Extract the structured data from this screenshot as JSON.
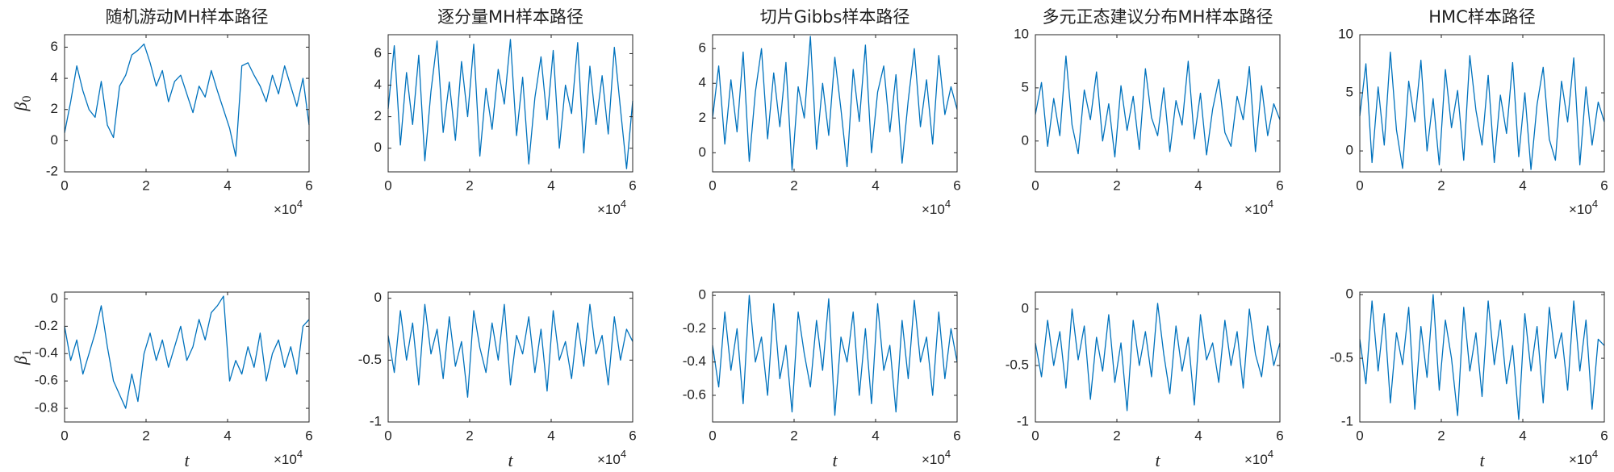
{
  "chart_data": [
    {
      "type": "line",
      "title": "随机游动MH样本路径",
      "ylabel": "β",
      "ylabel_subscript": "0",
      "x_multiplier": {
        "base": "×10",
        "exponent": "4"
      },
      "x": [
        0,
        1500,
        3000,
        4500,
        6000,
        7500,
        9000,
        10500,
        12000,
        13500,
        15000,
        16500,
        18000,
        19500,
        21000,
        22500,
        24000,
        25500,
        27000,
        28500,
        30000,
        31500,
        33000,
        34500,
        36000,
        37500,
        39000,
        40500,
        42000,
        43500,
        45000,
        46500,
        48000,
        49500,
        51000,
        52500,
        54000,
        55500,
        57000,
        58500,
        60000
      ],
      "values": [
        0.5,
        2.5,
        4.8,
        3.2,
        2.0,
        1.5,
        3.8,
        1.0,
        0.2,
        3.5,
        4.2,
        5.5,
        5.8,
        6.2,
        5.0,
        3.5,
        4.5,
        2.5,
        3.8,
        4.2,
        3.0,
        1.8,
        3.5,
        2.8,
        4.5,
        3.2,
        2.0,
        0.8,
        -1.0,
        4.8,
        5.0,
        4.2,
        3.5,
        2.5,
        4.2,
        3.0,
        4.8,
        3.5,
        2.2,
        4.0,
        1.0
      ],
      "color": "#0072bd",
      "xlim": [
        0,
        60000
      ],
      "xticks": [
        0,
        {
          "value": 20000,
          "label": "2"
        },
        {
          "value": 40000,
          "label": "4"
        },
        {
          "value": 60000,
          "label": "6"
        }
      ],
      "ylim": [
        -2,
        6.8
      ],
      "yticks": [
        -2,
        0,
        2,
        4,
        6
      ]
    },
    {
      "type": "line",
      "title": "逐分量MH样本路径",
      "x_multiplier": {
        "base": "×10",
        "exponent": "4"
      },
      "x": [
        0,
        1500,
        3000,
        4500,
        6000,
        7500,
        9000,
        10500,
        12000,
        13500,
        15000,
        16500,
        18000,
        19500,
        21000,
        22500,
        24000,
        25500,
        27000,
        28500,
        30000,
        31500,
        33000,
        34500,
        36000,
        37500,
        39000,
        40500,
        42000,
        43500,
        45000,
        46500,
        48000,
        49500,
        51000,
        52500,
        54000,
        55500,
        57000,
        58500,
        60000
      ],
      "values": [
        2.5,
        6.5,
        0.2,
        4.8,
        1.5,
        5.9,
        -0.8,
        3.6,
        6.8,
        1.0,
        4.2,
        0.5,
        5.5,
        2.0,
        6.6,
        -0.5,
        3.8,
        1.2,
        5.0,
        2.8,
        6.9,
        0.8,
        4.5,
        -1.0,
        3.2,
        5.8,
        1.8,
        6.2,
        0.0,
        4.0,
        2.2,
        6.7,
        -0.3,
        5.2,
        1.5,
        4.6,
        0.9,
        6.4,
        2.5,
        -1.3,
        3.0
      ],
      "color": "#0072bd",
      "xlim": [
        0,
        60000
      ],
      "xticks": [
        0,
        {
          "value": 20000,
          "label": "2"
        },
        {
          "value": 40000,
          "label": "4"
        },
        {
          "value": 60000,
          "label": "6"
        }
      ],
      "ylim": [
        -1.5,
        7.2
      ],
      "yticks": [
        0,
        2,
        4,
        6
      ]
    },
    {
      "type": "line",
      "title": "切片Gibbs样本路径",
      "x_multiplier": {
        "base": "×10",
        "exponent": "4"
      },
      "x": [
        0,
        1500,
        3000,
        4500,
        6000,
        7500,
        9000,
        10500,
        12000,
        13500,
        15000,
        16500,
        18000,
        19500,
        21000,
        22500,
        24000,
        25500,
        27000,
        28500,
        30000,
        31500,
        33000,
        34500,
        36000,
        37500,
        39000,
        40500,
        42000,
        43500,
        45000,
        46500,
        48000,
        49500,
        51000,
        52500,
        54000,
        55500,
        57000,
        58500,
        60000
      ],
      "values": [
        2.0,
        5.0,
        0.5,
        4.2,
        1.2,
        5.8,
        -0.5,
        3.5,
        6.0,
        0.8,
        4.6,
        1.5,
        5.2,
        -1.0,
        3.8,
        2.0,
        6.7,
        0.2,
        4.0,
        1.0,
        5.5,
        2.5,
        -0.8,
        4.8,
        1.8,
        6.2,
        0.0,
        3.5,
        5.0,
        1.2,
        4.5,
        -0.6,
        3.0,
        6.0,
        1.5,
        4.2,
        0.5,
        5.6,
        2.2,
        3.8,
        2.5
      ],
      "color": "#0072bd",
      "xlim": [
        0,
        60000
      ],
      "xticks": [
        0,
        {
          "value": 20000,
          "label": "2"
        },
        {
          "value": 40000,
          "label": "4"
        },
        {
          "value": 60000,
          "label": "6"
        }
      ],
      "ylim": [
        -1.1,
        6.8
      ],
      "yticks": [
        0,
        2,
        4,
        6
      ]
    },
    {
      "type": "line",
      "title": "多元正态建议分布MH样本路径",
      "x_multiplier": {
        "base": "×10",
        "exponent": "4"
      },
      "x": [
        0,
        1500,
        3000,
        4500,
        6000,
        7500,
        9000,
        10500,
        12000,
        13500,
        15000,
        16500,
        18000,
        19500,
        21000,
        22500,
        24000,
        25500,
        27000,
        28500,
        30000,
        31500,
        33000,
        34500,
        36000,
        37500,
        39000,
        40500,
        42000,
        43500,
        45000,
        46500,
        48000,
        49500,
        51000,
        52500,
        54000,
        55500,
        57000,
        58500,
        60000
      ],
      "values": [
        2.5,
        5.5,
        -0.5,
        4.0,
        0.5,
        8.0,
        1.5,
        -1.2,
        4.8,
        2.0,
        6.5,
        0.0,
        3.5,
        -1.5,
        5.2,
        1.0,
        4.2,
        -0.8,
        6.8,
        2.2,
        0.5,
        5.0,
        -1.0,
        3.8,
        1.5,
        7.5,
        0.2,
        4.5,
        -1.3,
        3.0,
        5.8,
        0.8,
        -0.5,
        4.2,
        2.0,
        7.0,
        -1.0,
        5.2,
        0.5,
        3.5,
        2.0
      ],
      "color": "#0072bd",
      "xlim": [
        0,
        60000
      ],
      "xticks": [
        0,
        {
          "value": 20000,
          "label": "2"
        },
        {
          "value": 40000,
          "label": "4"
        },
        {
          "value": 60000,
          "label": "6"
        }
      ],
      "ylim": [
        -2.9,
        10
      ],
      "yticks": [
        0,
        5,
        10
      ]
    },
    {
      "type": "line",
      "title": "HMC样本路径",
      "x_multiplier": {
        "base": "×10",
        "exponent": "4"
      },
      "x": [
        0,
        1500,
        3000,
        4500,
        6000,
        7500,
        9000,
        10500,
        12000,
        13500,
        15000,
        16500,
        18000,
        19500,
        21000,
        22500,
        24000,
        25500,
        27000,
        28500,
        30000,
        31500,
        33000,
        34500,
        36000,
        37500,
        39000,
        40500,
        42000,
        43500,
        45000,
        46500,
        48000,
        49500,
        51000,
        52500,
        54000,
        55500,
        57000,
        58500,
        60000
      ],
      "values": [
        3.0,
        7.5,
        -1.0,
        5.5,
        0.5,
        8.5,
        1.8,
        -1.5,
        6.0,
        2.5,
        7.8,
        0.0,
        4.5,
        -1.2,
        7.0,
        2.0,
        5.2,
        -0.8,
        8.2,
        3.5,
        0.5,
        6.5,
        -1.0,
        4.8,
        1.5,
        7.6,
        -0.5,
        5.0,
        -1.6,
        4.0,
        7.2,
        1.0,
        -0.8,
        6.0,
        2.5,
        8.0,
        -1.2,
        5.5,
        0.5,
        4.2,
        2.5
      ],
      "color": "#0072bd",
      "xlim": [
        0,
        60000
      ],
      "xticks": [
        0,
        {
          "value": 20000,
          "label": "2"
        },
        {
          "value": 40000,
          "label": "4"
        },
        {
          "value": 60000,
          "label": "6"
        }
      ],
      "ylim": [
        -1.8,
        10
      ],
      "yticks": [
        0,
        5,
        10
      ]
    },
    {
      "type": "line",
      "ylabel": "β",
      "ylabel_subscript": "1",
      "xlabel": "t",
      "x_multiplier": {
        "base": "×10",
        "exponent": "4"
      },
      "x": [
        0,
        1500,
        3000,
        4500,
        6000,
        7500,
        9000,
        10500,
        12000,
        13500,
        15000,
        16500,
        18000,
        19500,
        21000,
        22500,
        24000,
        25500,
        27000,
        28500,
        30000,
        31500,
        33000,
        34500,
        36000,
        37500,
        39000,
        40500,
        42000,
        43500,
        45000,
        46500,
        48000,
        49500,
        51000,
        52500,
        54000,
        55500,
        57000,
        58500,
        60000
      ],
      "values": [
        -0.2,
        -0.45,
        -0.3,
        -0.55,
        -0.4,
        -0.25,
        -0.05,
        -0.35,
        -0.6,
        -0.7,
        -0.8,
        -0.55,
        -0.75,
        -0.4,
        -0.25,
        -0.45,
        -0.3,
        -0.5,
        -0.35,
        -0.2,
        -0.45,
        -0.35,
        -0.15,
        -0.3,
        -0.1,
        -0.05,
        0.02,
        -0.6,
        -0.45,
        -0.55,
        -0.35,
        -0.5,
        -0.25,
        -0.6,
        -0.4,
        -0.3,
        -0.5,
        -0.35,
        -0.55,
        -0.2,
        -0.15
      ],
      "color": "#0072bd",
      "xlim": [
        0,
        60000
      ],
      "xticks": [
        0,
        {
          "value": 20000,
          "label": "2"
        },
        {
          "value": 40000,
          "label": "4"
        },
        {
          "value": 60000,
          "label": "6"
        }
      ],
      "ylim": [
        -0.9,
        0.05
      ],
      "yticks": [
        -0.8,
        -0.6,
        -0.4,
        -0.2,
        0
      ]
    },
    {
      "type": "line",
      "xlabel": "t",
      "x_multiplier": {
        "base": "×10",
        "exponent": "4"
      },
      "x": [
        0,
        1500,
        3000,
        4500,
        6000,
        7500,
        9000,
        10500,
        12000,
        13500,
        15000,
        16500,
        18000,
        19500,
        21000,
        22500,
        24000,
        25500,
        27000,
        28500,
        30000,
        31500,
        33000,
        34500,
        36000,
        37500,
        39000,
        40500,
        42000,
        43500,
        45000,
        46500,
        48000,
        49500,
        51000,
        52500,
        54000,
        55500,
        57000,
        58500,
        60000
      ],
      "values": [
        -0.3,
        -0.6,
        -0.1,
        -0.5,
        -0.2,
        -0.7,
        -0.05,
        -0.45,
        -0.25,
        -0.65,
        -0.15,
        -0.55,
        -0.35,
        -0.8,
        -0.1,
        -0.4,
        -0.6,
        -0.2,
        -0.5,
        -0.05,
        -0.7,
        -0.3,
        -0.45,
        -0.15,
        -0.6,
        -0.25,
        -0.75,
        -0.1,
        -0.5,
        -0.35,
        -0.65,
        -0.2,
        -0.55,
        -0.05,
        -0.45,
        -0.3,
        -0.7,
        -0.15,
        -0.5,
        -0.25,
        -0.35
      ],
      "color": "#0072bd",
      "xlim": [
        0,
        60000
      ],
      "xticks": [
        0,
        {
          "value": 20000,
          "label": "2"
        },
        {
          "value": 40000,
          "label": "4"
        },
        {
          "value": 60000,
          "label": "6"
        }
      ],
      "ylim": [
        -1,
        0.05
      ],
      "yticks": [
        -1,
        -0.5,
        0
      ]
    },
    {
      "type": "line",
      "xlabel": "t",
      "x_multiplier": {
        "base": "×10",
        "exponent": "4"
      },
      "x": [
        0,
        1500,
        3000,
        4500,
        6000,
        7500,
        9000,
        10500,
        12000,
        13500,
        15000,
        16500,
        18000,
        19500,
        21000,
        22500,
        24000,
        25500,
        27000,
        28500,
        30000,
        31500,
        33000,
        34500,
        36000,
        37500,
        39000,
        40500,
        42000,
        43500,
        45000,
        46500,
        48000,
        49500,
        51000,
        52500,
        54000,
        55500,
        57000,
        58500,
        60000
      ],
      "values": [
        -0.3,
        -0.55,
        -0.1,
        -0.45,
        -0.2,
        -0.65,
        0.0,
        -0.4,
        -0.25,
        -0.6,
        -0.05,
        -0.5,
        -0.3,
        -0.7,
        -0.1,
        -0.35,
        -0.55,
        -0.15,
        -0.45,
        -0.02,
        -0.72,
        -0.25,
        -0.4,
        -0.1,
        -0.6,
        -0.2,
        -0.65,
        -0.05,
        -0.45,
        -0.3,
        -0.7,
        -0.15,
        -0.5,
        -0.03,
        -0.4,
        -0.25,
        -0.6,
        -0.1,
        -0.5,
        -0.2,
        -0.4
      ],
      "color": "#0072bd",
      "xlim": [
        0,
        60000
      ],
      "xticks": [
        0,
        {
          "value": 20000,
          "label": "2"
        },
        {
          "value": 40000,
          "label": "4"
        },
        {
          "value": 60000,
          "label": "6"
        }
      ],
      "ylim": [
        -0.76,
        0.02
      ],
      "yticks": [
        -0.6,
        -0.4,
        -0.2,
        0
      ]
    },
    {
      "type": "line",
      "xlabel": "t",
      "x_multiplier": {
        "base": "×10",
        "exponent": "4"
      },
      "x": [
        0,
        1500,
        3000,
        4500,
        6000,
        7500,
        9000,
        10500,
        12000,
        13500,
        15000,
        16500,
        18000,
        19500,
        21000,
        22500,
        24000,
        25500,
        27000,
        28500,
        30000,
        31500,
        33000,
        34500,
        36000,
        37500,
        39000,
        40500,
        42000,
        43500,
        45000,
        46500,
        48000,
        49500,
        51000,
        52500,
        54000,
        55500,
        57000,
        58500,
        60000
      ],
      "values": [
        -0.3,
        -0.6,
        -0.1,
        -0.5,
        -0.2,
        -0.7,
        0.0,
        -0.45,
        -0.15,
        -0.8,
        -0.25,
        -0.55,
        -0.05,
        -0.65,
        -0.3,
        -0.9,
        -0.1,
        -0.5,
        -0.2,
        -0.6,
        0.05,
        -0.4,
        -0.75,
        -0.15,
        -0.55,
        -0.25,
        -0.85,
        -0.05,
        -0.45,
        -0.3,
        -0.65,
        -0.1,
        -0.5,
        -0.2,
        -0.7,
        0.0,
        -0.4,
        -0.6,
        -0.15,
        -0.5,
        -0.3
      ],
      "color": "#0072bd",
      "xlim": [
        0,
        60000
      ],
      "xticks": [
        0,
        {
          "value": 20000,
          "label": "2"
        },
        {
          "value": 40000,
          "label": "4"
        },
        {
          "value": 60000,
          "label": "6"
        }
      ],
      "ylim": [
        -1,
        0.15
      ],
      "yticks": [
        -1,
        -0.5,
        0
      ]
    },
    {
      "type": "line",
      "xlabel": "t",
      "x_multiplier": {
        "base": "×10",
        "exponent": "4"
      },
      "x": [
        0,
        1500,
        3000,
        4500,
        6000,
        7500,
        9000,
        10500,
        12000,
        13500,
        15000,
        16500,
        18000,
        19500,
        21000,
        22500,
        24000,
        25500,
        27000,
        28500,
        30000,
        31500,
        33000,
        34500,
        36000,
        37500,
        39000,
        40500,
        42000,
        43500,
        45000,
        46500,
        48000,
        49500,
        51000,
        52500,
        54000,
        55500,
        57000,
        58500,
        60000
      ],
      "values": [
        -0.35,
        -0.7,
        -0.05,
        -0.6,
        -0.15,
        -0.85,
        -0.3,
        -0.55,
        -0.1,
        -0.9,
        -0.25,
        -0.65,
        0.0,
        -0.75,
        -0.2,
        -0.5,
        -0.95,
        -0.1,
        -0.6,
        -0.3,
        -0.8,
        -0.05,
        -0.55,
        -0.2,
        -0.7,
        -0.4,
        -0.98,
        -0.15,
        -0.6,
        -0.25,
        -0.85,
        -0.1,
        -0.5,
        -0.3,
        -0.75,
        -0.05,
        -0.6,
        -0.2,
        -0.9,
        -0.35,
        -0.4
      ],
      "color": "#0072bd",
      "xlim": [
        0,
        60000
      ],
      "xticks": [
        0,
        {
          "value": 20000,
          "label": "2"
        },
        {
          "value": 40000,
          "label": "4"
        },
        {
          "value": 60000,
          "label": "6"
        }
      ],
      "ylim": [
        -1,
        0.02
      ],
      "yticks": [
        -1,
        -0.5,
        0
      ]
    }
  ]
}
